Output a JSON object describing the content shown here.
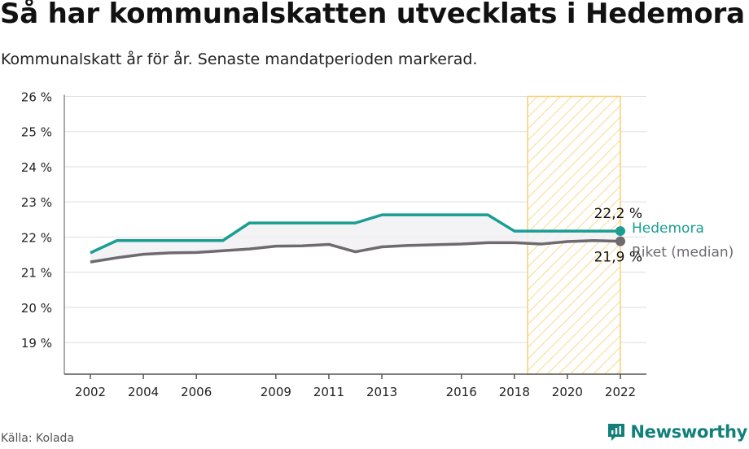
{
  "title": "Så har kommunalskatten utvecklats i Hedemora",
  "subtitle": "Kommunalskatt år för år. Senaste mandatperioden markerad.",
  "source": "Källa: Kolada",
  "brand": "Newsworthy",
  "colors": {
    "hedemora": "#1a9e92",
    "riket": "#6e6a70",
    "highlight_stroke": "#f6cf75",
    "highlight_hatch": "#f9d98e",
    "brand": "#12807a"
  },
  "chart_data": {
    "type": "line",
    "x_ticks": [
      "2002",
      "2004",
      "2006",
      "2009",
      "2011",
      "2013",
      "2016",
      "2018",
      "2020",
      "2022"
    ],
    "y_ticks": [
      "19 %",
      "20 %",
      "21 %",
      "22 %",
      "23 %",
      "24 %",
      "25 %",
      "26 %"
    ],
    "ylim": [
      18.1,
      26
    ],
    "xlim": [
      2002,
      2022
    ],
    "highlight_period": [
      2018.5,
      2022
    ],
    "grid": true,
    "series": [
      {
        "name": "Hedemora",
        "end_label": "22,2 %",
        "points": [
          [
            2002,
            21.55
          ],
          [
            2003,
            21.9
          ],
          [
            2004,
            21.9
          ],
          [
            2005,
            21.9
          ],
          [
            2006,
            21.9
          ],
          [
            2007,
            21.9
          ],
          [
            2008,
            22.4
          ],
          [
            2009,
            22.4
          ],
          [
            2010,
            22.4
          ],
          [
            2011,
            22.4
          ],
          [
            2012,
            22.4
          ],
          [
            2013,
            22.63
          ],
          [
            2014,
            22.63
          ],
          [
            2015,
            22.63
          ],
          [
            2016,
            22.63
          ],
          [
            2017,
            22.63
          ],
          [
            2018,
            22.17
          ],
          [
            2019,
            22.17
          ],
          [
            2020,
            22.17
          ],
          [
            2021,
            22.17
          ],
          [
            2022,
            22.17
          ]
        ]
      },
      {
        "name": "Riket (median)",
        "end_label": "21,9 %",
        "points": [
          [
            2002,
            21.29
          ],
          [
            2003,
            21.41
          ],
          [
            2004,
            21.51
          ],
          [
            2005,
            21.55
          ],
          [
            2006,
            21.56
          ],
          [
            2007,
            21.61
          ],
          [
            2008,
            21.66
          ],
          [
            2009,
            21.74
          ],
          [
            2010,
            21.75
          ],
          [
            2011,
            21.79
          ],
          [
            2012,
            21.58
          ],
          [
            2013,
            21.72
          ],
          [
            2014,
            21.76
          ],
          [
            2015,
            21.78
          ],
          [
            2016,
            21.8
          ],
          [
            2017,
            21.84
          ],
          [
            2018,
            21.84
          ],
          [
            2019,
            21.8
          ],
          [
            2020,
            21.87
          ],
          [
            2021,
            21.9
          ],
          [
            2022,
            21.88
          ]
        ]
      }
    ]
  }
}
